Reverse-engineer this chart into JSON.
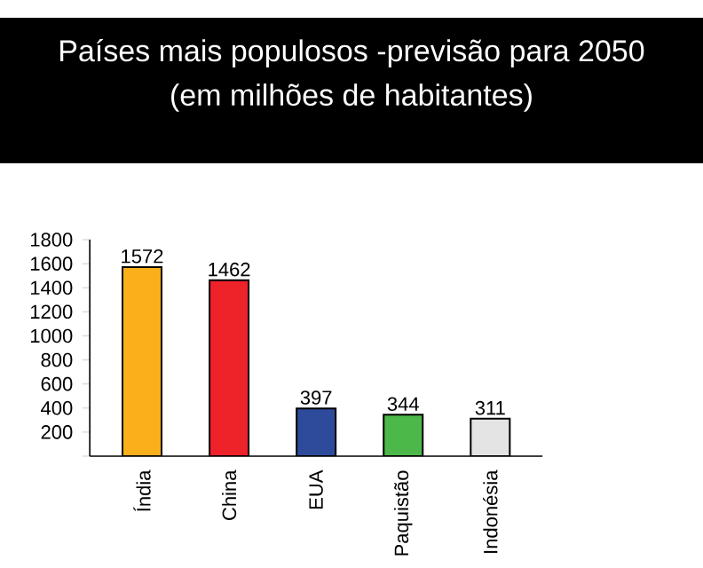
{
  "chart_data": {
    "type": "bar",
    "title": "Países mais populosos -previsão para 2050",
    "subtitle": "(em milhões de habitantes)",
    "categories": [
      "Índia",
      "China",
      "EUA",
      "Paquistão",
      "Indonésia"
    ],
    "values": [
      1572,
      1462,
      397,
      344,
      311
    ],
    "colors": [
      "#f9b01a",
      "#ee2229",
      "#2e4b9b",
      "#4cb849",
      "#e4e4e4"
    ],
    "value_labels": [
      "1572",
      "1462",
      "397",
      "344",
      "311"
    ],
    "ylim": [
      0,
      1800
    ],
    "yticks": [
      {
        "value": 0,
        "label": null
      },
      200,
      400,
      600,
      800,
      1000,
      1200,
      1400,
      1600,
      1800
    ],
    "grid": false
  }
}
